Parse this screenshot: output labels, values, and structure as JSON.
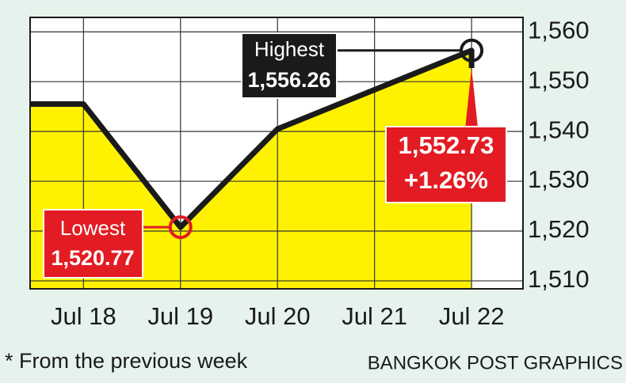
{
  "chart_data": {
    "type": "line",
    "x": [
      -0.55,
      0,
      1,
      2,
      4,
      4
    ],
    "values": [
      1545.5,
      1545.5,
      1520.77,
      1540.5,
      1556.26,
      1552.73
    ],
    "xlim": [
      -0.55,
      4.53
    ],
    "xticks": [
      {
        "value": 0,
        "label": "Jul 18"
      },
      {
        "value": 1,
        "label": "Jul 19"
      },
      {
        "value": 2,
        "label": "Jul 20"
      },
      {
        "value": 3,
        "label": "Jul 21"
      },
      {
        "value": 4,
        "label": "Jul 22"
      }
    ],
    "ylim": [
      1508.4,
      1562.9
    ],
    "yticks": [
      {
        "value": 1510,
        "label": "1,510"
      },
      {
        "value": 1520,
        "label": "1,520"
      },
      {
        "value": 1530,
        "label": "1,530"
      },
      {
        "value": 1540,
        "label": "1,540"
      },
      {
        "value": 1550,
        "label": "1,550"
      },
      {
        "value": 1560,
        "label": "1,560"
      }
    ],
    "grid": true,
    "color": "#1a1a1a",
    "fill_color": "#fff200",
    "annotations": [
      "Highest",
      "1,556.26",
      "Lowest",
      "1,520.77",
      "1,552.73",
      "+1.26%"
    ],
    "footnote": "* From the previous week",
    "source": "BANGKOK POST GRAPHICS"
  }
}
